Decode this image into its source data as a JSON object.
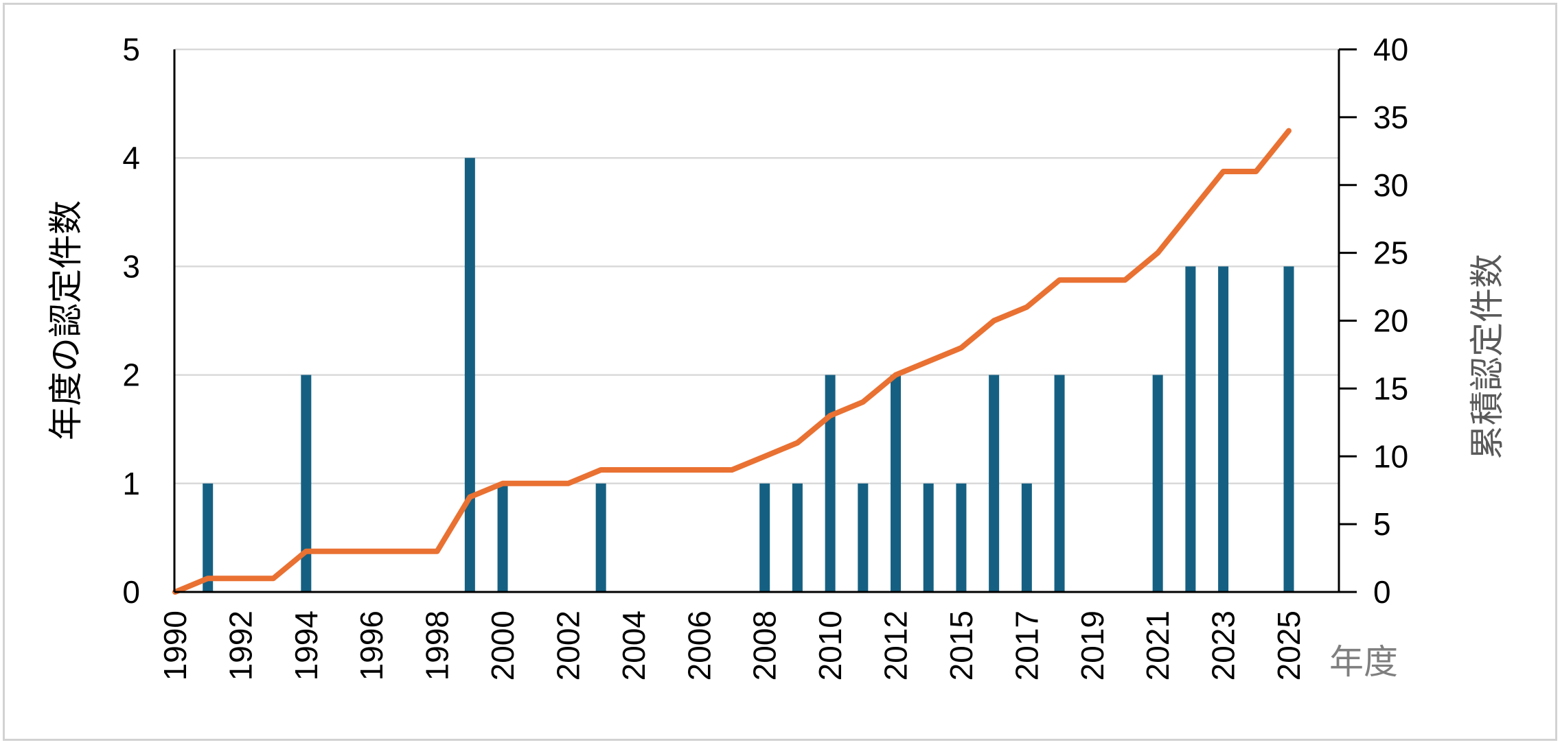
{
  "chart_data": {
    "type": "bar",
    "title": "",
    "categories": [
      "1990",
      "1991",
      "1992",
      "1993",
      "1994",
      "1995",
      "1996",
      "1997",
      "1998",
      "1999",
      "2000",
      "2001",
      "2002",
      "2003",
      "2004",
      "2005",
      "2006",
      "2007",
      "2008",
      "2009",
      "2010",
      "2011",
      "2012",
      "2013",
      "2015",
      "2016",
      "2017",
      "2018",
      "2019",
      "2020",
      "2021",
      "2022",
      "2023",
      "2024",
      "2025"
    ],
    "series": [
      {
        "name": "年度の認定件数",
        "type": "bar",
        "axis": "left",
        "values": [
          0,
          1,
          0,
          0,
          2,
          0,
          0,
          0,
          0,
          4,
          1,
          0,
          0,
          1,
          0,
          0,
          0,
          0,
          1,
          1,
          2,
          1,
          2,
          1,
          1,
          2,
          1,
          2,
          0,
          0,
          2,
          3,
          3,
          0,
          3
        ]
      },
      {
        "name": "累積認定件数",
        "type": "line",
        "axis": "right",
        "values": [
          0,
          1,
          1,
          1,
          3,
          3,
          3,
          3,
          3,
          7,
          8,
          8,
          8,
          9,
          9,
          9,
          9,
          9,
          10,
          11,
          13,
          14,
          16,
          17,
          18,
          20,
          21,
          23,
          23,
          23,
          25,
          28,
          31,
          31,
          34
        ]
      }
    ],
    "x_axis": {
      "title": "年度",
      "tick_labels": [
        "1990",
        "1992",
        "1994",
        "1996",
        "1998",
        "2000",
        "2002",
        "2004",
        "2006",
        "2008",
        "2010",
        "2012",
        "2015",
        "2017",
        "2019",
        "2021",
        "2023",
        "2025"
      ],
      "tick_every": 2
    },
    "y_axis_left": {
      "title": "年度の認定件数",
      "min": 0,
      "max": 5,
      "ticks": [
        0,
        1,
        2,
        3,
        4,
        5
      ]
    },
    "y_axis_right": {
      "title": "累積認定件数",
      "min": 0,
      "max": 40,
      "ticks": [
        0,
        5,
        10,
        15,
        20,
        25,
        30,
        35,
        40
      ]
    },
    "grid": true,
    "legend": "none",
    "colors": {
      "bar": "#156082",
      "line": "#E97132",
      "grid": "#D9D9D9",
      "axis": "#000000",
      "tick_label": "#000000",
      "left_title": "#000000",
      "right_title": "#595959",
      "x_title": "#7F7F7F"
    }
  }
}
